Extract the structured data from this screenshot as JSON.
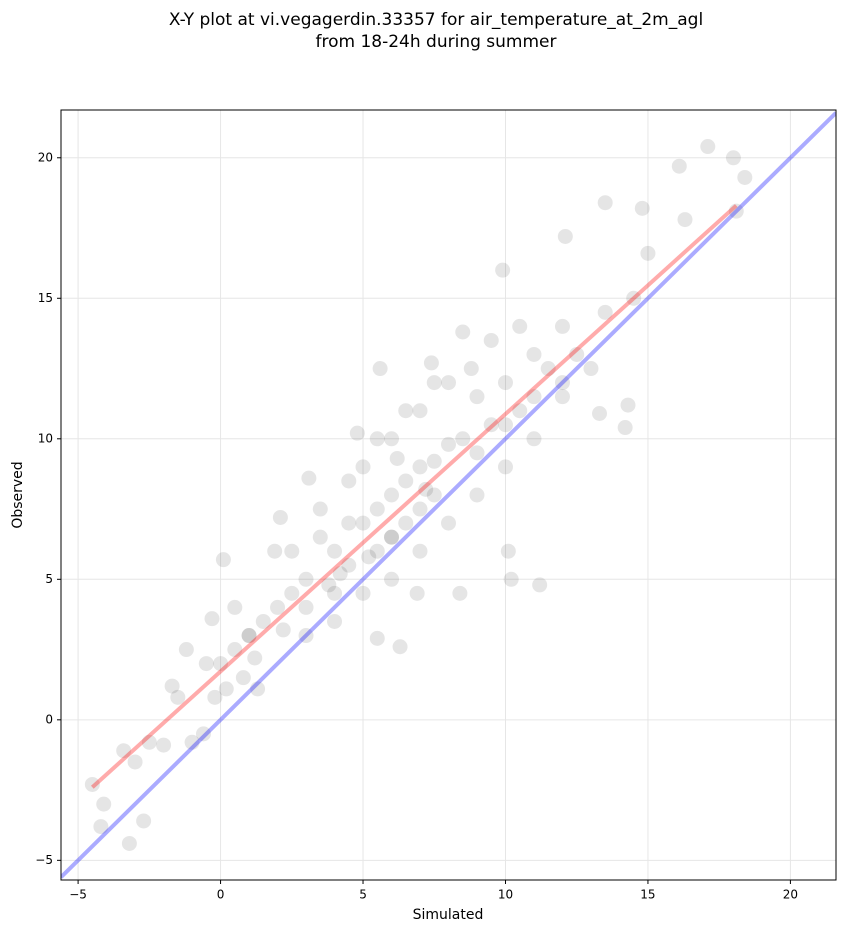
{
  "chart_data": {
    "type": "scatter",
    "title": [
      "X-Y plot at vi.vegagerdin.33357 for air_temperature_at_2m_agl",
      "from 18-24h during summer"
    ],
    "x_label": "Simulated",
    "y_label": "Observed",
    "xlim": [
      -5.6,
      21.6
    ],
    "ylim": [
      -5.7,
      21.7
    ],
    "xticks": [
      {
        "value": -5,
        "label": "−5"
      },
      0,
      5,
      10,
      15,
      20
    ],
    "yticks": [
      {
        "value": -5,
        "label": "−5"
      },
      0,
      5,
      10,
      15,
      20
    ],
    "grid": true,
    "color": "#000000",
    "x": [
      -4.5,
      -4.1,
      -4.2,
      -3.2,
      -3.4,
      -2.7,
      -3.0,
      -2.5,
      -2.0,
      -1.5,
      -1.0,
      -1.7,
      -1.2,
      -0.6,
      -0.5,
      -0.3,
      -0.2,
      0.1,
      0.2,
      0.5,
      0.8,
      1.0,
      1.2,
      1.3,
      1.5,
      1.9,
      2.0,
      2.1,
      2.2,
      2.5,
      2.5,
      3.0,
      3.0,
      3.1,
      3.5,
      3.5,
      3.8,
      4.0,
      4.0,
      4.2,
      4.5,
      4.5,
      4.5,
      4.8,
      5.0,
      5.0,
      5.0,
      5.2,
      5.5,
      5.5,
      5.5,
      5.5,
      5.6,
      6.0,
      6.0,
      6.0,
      6.0,
      6.2,
      6.3,
      6.5,
      6.5,
      6.5,
      6.9,
      7.0,
      7.0,
      7.0,
      7.2,
      7.4,
      7.5,
      7.5,
      7.5,
      8.0,
      8.0,
      8.0,
      8.4,
      8.5,
      8.5,
      8.8,
      9.0,
      9.0,
      9.5,
      9.5,
      9.9,
      10.0,
      10.0,
      10.1,
      10.2,
      10.5,
      10.5,
      11.0,
      11.0,
      11.2,
      11.5,
      12.0,
      12.0,
      12.1,
      12.5,
      13.0,
      13.3,
      13.5,
      13.5,
      14.2,
      14.3,
      14.5,
      14.8,
      15.0,
      16.1,
      16.3,
      17.1,
      18.0,
      18.1,
      18.4,
      0.0,
      0.5,
      1.0,
      3.0,
      4.0,
      6.0,
      7.0,
      9.0,
      10.0,
      11.0,
      12.0
    ],
    "y": [
      -2.3,
      -3.0,
      -3.8,
      -4.4,
      -1.1,
      -3.6,
      -1.5,
      -0.8,
      -0.9,
      0.8,
      -0.8,
      1.2,
      2.5,
      -0.5,
      2.0,
      3.6,
      0.8,
      5.7,
      1.1,
      2.5,
      1.5,
      3.0,
      2.2,
      1.1,
      3.5,
      6.0,
      4.0,
      7.2,
      3.2,
      4.5,
      6.0,
      5.0,
      4.0,
      8.6,
      6.5,
      7.5,
      4.8,
      6.0,
      3.5,
      5.2,
      5.5,
      7.0,
      8.5,
      10.2,
      7.0,
      9.0,
      4.5,
      5.8,
      7.5,
      6.0,
      10.0,
      2.9,
      12.5,
      8.0,
      6.5,
      10.0,
      5.0,
      9.3,
      2.6,
      8.5,
      7.0,
      11.0,
      4.5,
      9.0,
      7.5,
      11.0,
      8.2,
      12.7,
      9.2,
      8.0,
      12.0,
      9.8,
      12.0,
      7.0,
      4.5,
      10.0,
      13.8,
      12.5,
      11.5,
      8.0,
      10.5,
      13.5,
      16.0,
      12.0,
      10.5,
      6.0,
      5.0,
      11.0,
      14.0,
      13.0,
      10.0,
      4.8,
      12.5,
      14.0,
      11.5,
      17.2,
      13.0,
      12.5,
      10.9,
      14.5,
      18.4,
      10.4,
      11.2,
      15.0,
      18.2,
      16.6,
      19.7,
      17.8,
      20.4,
      20.0,
      18.1,
      19.3,
      2.0,
      4.0,
      3.0,
      3.0,
      4.5,
      6.5,
      6.0,
      9.5,
      9.0,
      11.5,
      12.0
    ],
    "lines": [
      {
        "color": "#0000ff",
        "x": [
          -5.6,
          21.6
        ],
        "y": [
          -5.6,
          21.6
        ]
      },
      {
        "color": "#ff0000",
        "x": [
          -4.5,
          18.1
        ],
        "y": [
          -2.4,
          18.3
        ]
      }
    ]
  }
}
